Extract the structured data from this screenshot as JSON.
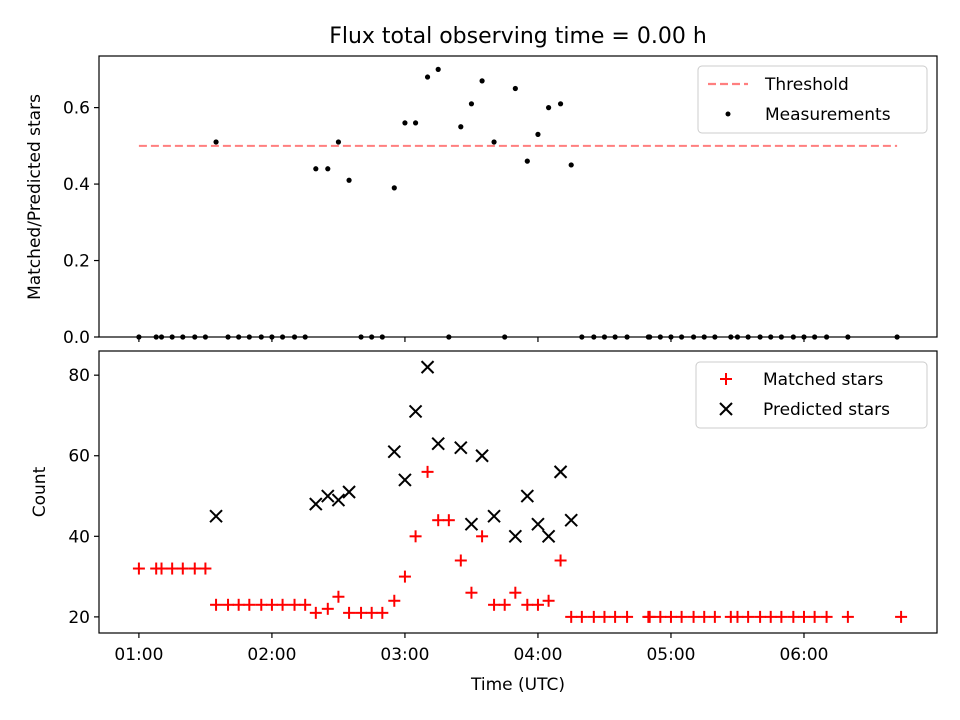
{
  "title": "Flux total observing time = 0.00 h",
  "chart_data": [
    {
      "type": "scatter",
      "ylabel": "Matched/Predicted stars",
      "ylim": [
        0,
        0.735
      ],
      "yticks": [
        0.0,
        0.2,
        0.4,
        0.6
      ],
      "ytick_labels": [
        "0.0",
        "0.2",
        "0.4",
        "0.6"
      ],
      "legend_position": "top-right",
      "threshold": {
        "name": "Threshold",
        "value": 0.5,
        "x_start": 0.0,
        "x_end": 5.7,
        "color": "#ff7f7f",
        "style": "dashed"
      },
      "series": [
        {
          "name": "Measurements",
          "color": "#000000",
          "marker": "dot",
          "points": [
            [
              0.0,
              0.0
            ],
            [
              0.13,
              0.0
            ],
            [
              0.17,
              0.0
            ],
            [
              0.25,
              0.0
            ],
            [
              0.33,
              0.0
            ],
            [
              0.42,
              0.0
            ],
            [
              0.5,
              0.0
            ],
            [
              0.58,
              0.51
            ],
            [
              0.67,
              0.0
            ],
            [
              0.75,
              0.0
            ],
            [
              0.83,
              0.0
            ],
            [
              0.92,
              0.0
            ],
            [
              1.0,
              0.0
            ],
            [
              1.08,
              0.0
            ],
            [
              1.17,
              0.0
            ],
            [
              1.25,
              0.0
            ],
            [
              1.33,
              0.44
            ],
            [
              1.42,
              0.44
            ],
            [
              1.5,
              0.51
            ],
            [
              1.58,
              0.41
            ],
            [
              1.67,
              0.0
            ],
            [
              1.75,
              0.0
            ],
            [
              1.83,
              0.0
            ],
            [
              1.92,
              0.39
            ],
            [
              2.0,
              0.56
            ],
            [
              2.08,
              0.56
            ],
            [
              2.17,
              0.68
            ],
            [
              2.25,
              0.7
            ],
            [
              2.33,
              0.0
            ],
            [
              2.42,
              0.55
            ],
            [
              2.5,
              0.61
            ],
            [
              2.58,
              0.67
            ],
            [
              2.67,
              0.51
            ],
            [
              2.75,
              0.0
            ],
            [
              2.83,
              0.65
            ],
            [
              2.92,
              0.46
            ],
            [
              3.0,
              0.53
            ],
            [
              3.08,
              0.6
            ],
            [
              3.17,
              0.61
            ],
            [
              3.25,
              0.45
            ],
            [
              3.33,
              0.0
            ],
            [
              3.42,
              0.0
            ],
            [
              3.5,
              0.0
            ],
            [
              3.58,
              0.0
            ],
            [
              3.67,
              0.0
            ],
            [
              3.83,
              0.0
            ],
            [
              3.84,
              0.0
            ],
            [
              3.92,
              0.0
            ],
            [
              4.0,
              0.0
            ],
            [
              4.08,
              0.0
            ],
            [
              4.17,
              0.0
            ],
            [
              4.25,
              0.0
            ],
            [
              4.33,
              0.0
            ],
            [
              4.45,
              0.0
            ],
            [
              4.5,
              0.0
            ],
            [
              4.58,
              0.0
            ],
            [
              4.67,
              0.0
            ],
            [
              4.75,
              0.0
            ],
            [
              4.83,
              0.0
            ],
            [
              4.92,
              0.0
            ],
            [
              5.0,
              0.0
            ],
            [
              5.08,
              0.0
            ],
            [
              5.17,
              0.0
            ],
            [
              5.33,
              0.0
            ],
            [
              5.7,
              0.0
            ]
          ]
        }
      ]
    },
    {
      "type": "scatter",
      "xlabel": "Time (UTC)",
      "ylabel": "Count",
      "xlim": [
        -0.3,
        6.0
      ],
      "xticks": [
        0,
        1,
        2,
        3,
        4,
        5
      ],
      "xtick_labels": [
        "01:00",
        "02:00",
        "03:00",
        "04:00",
        "05:00",
        "06:00"
      ],
      "ylim": [
        16,
        86
      ],
      "yticks": [
        20,
        40,
        60,
        80
      ],
      "ytick_labels": [
        "20",
        "40",
        "60",
        "80"
      ],
      "legend_position": "top-right",
      "series": [
        {
          "name": "Matched stars",
          "color": "#ff0000",
          "marker": "plus",
          "points": [
            [
              0.0,
              32
            ],
            [
              0.13,
              32
            ],
            [
              0.17,
              32
            ],
            [
              0.25,
              32
            ],
            [
              0.33,
              32
            ],
            [
              0.42,
              32
            ],
            [
              0.5,
              32
            ],
            [
              0.58,
              23
            ],
            [
              0.67,
              23
            ],
            [
              0.75,
              23
            ],
            [
              0.83,
              23
            ],
            [
              0.92,
              23
            ],
            [
              1.0,
              23
            ],
            [
              1.08,
              23
            ],
            [
              1.17,
              23
            ],
            [
              1.25,
              23
            ],
            [
              1.33,
              21
            ],
            [
              1.42,
              22
            ],
            [
              1.5,
              25
            ],
            [
              1.58,
              21
            ],
            [
              1.67,
              21
            ],
            [
              1.75,
              21
            ],
            [
              1.83,
              21
            ],
            [
              1.92,
              24
            ],
            [
              2.0,
              30
            ],
            [
              2.08,
              40
            ],
            [
              2.17,
              56
            ],
            [
              2.25,
              44
            ],
            [
              2.33,
              44
            ],
            [
              2.42,
              34
            ],
            [
              2.5,
              26
            ],
            [
              2.58,
              40
            ],
            [
              2.67,
              23
            ],
            [
              2.75,
              23
            ],
            [
              2.83,
              26
            ],
            [
              2.92,
              23
            ],
            [
              3.0,
              23
            ],
            [
              3.08,
              24
            ],
            [
              3.17,
              34
            ],
            [
              3.25,
              20
            ],
            [
              3.33,
              20
            ],
            [
              3.42,
              20
            ],
            [
              3.5,
              20
            ],
            [
              3.58,
              20
            ],
            [
              3.67,
              20
            ],
            [
              3.83,
              20
            ],
            [
              3.84,
              20
            ],
            [
              3.92,
              20
            ],
            [
              4.0,
              20
            ],
            [
              4.08,
              20
            ],
            [
              4.17,
              20
            ],
            [
              4.25,
              20
            ],
            [
              4.33,
              20
            ],
            [
              4.45,
              20
            ],
            [
              4.5,
              20
            ],
            [
              4.58,
              20
            ],
            [
              4.67,
              20
            ],
            [
              4.75,
              20
            ],
            [
              4.83,
              20
            ],
            [
              4.92,
              20
            ],
            [
              5.0,
              20
            ],
            [
              5.08,
              20
            ],
            [
              5.17,
              20
            ],
            [
              5.33,
              20
            ],
            [
              5.73,
              20
            ]
          ]
        },
        {
          "name": "Predicted stars",
          "color": "#000000",
          "marker": "x",
          "points": [
            [
              0.58,
              45
            ],
            [
              1.33,
              48
            ],
            [
              1.42,
              50
            ],
            [
              1.5,
              49
            ],
            [
              1.58,
              51
            ],
            [
              1.92,
              61
            ],
            [
              2.0,
              54
            ],
            [
              2.08,
              71
            ],
            [
              2.17,
              82
            ],
            [
              2.25,
              63
            ],
            [
              2.42,
              62
            ],
            [
              2.5,
              43
            ],
            [
              2.58,
              60
            ],
            [
              2.67,
              45
            ],
            [
              2.83,
              40
            ],
            [
              2.92,
              50
            ],
            [
              3.0,
              43
            ],
            [
              3.08,
              40
            ],
            [
              3.17,
              56
            ],
            [
              3.25,
              44
            ]
          ]
        }
      ]
    }
  ]
}
